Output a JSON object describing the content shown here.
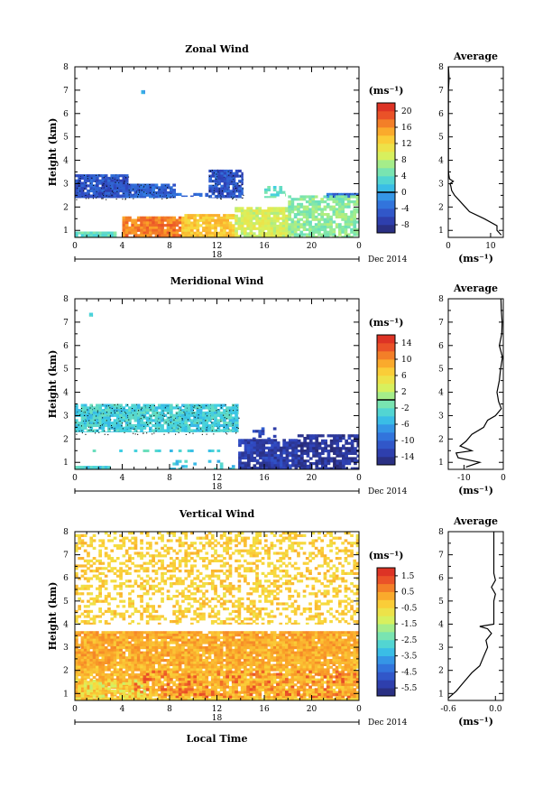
{
  "figure": {
    "xlabel": "Local Time",
    "ylabel": "Height (km)",
    "units": "(ms⁻¹)",
    "date_label": "Dec 2014",
    "day_label": "18",
    "avg_title": "Average",
    "x_ticks": [
      "0",
      "4",
      "8",
      "12",
      "16",
      "20",
      "0"
    ],
    "y_ticks": [
      "1",
      "2",
      "3",
      "4",
      "5",
      "6",
      "7",
      "8"
    ]
  },
  "chart_data": [
    {
      "type": "heatmap",
      "title": "Zonal Wind",
      "xlabel": "",
      "ylabel": "Height (km)",
      "xlim": [
        0,
        24
      ],
      "ylim": [
        0.7,
        8
      ],
      "colorbar": {
        "ticks": [
          "20",
          "16",
          "12",
          "8",
          "4",
          "0",
          "-4",
          "-8"
        ],
        "range": [
          -10,
          22
        ],
        "zero_line": 0
      },
      "profile": {
        "title": "Average",
        "xlim": [
          0,
          13
        ],
        "x_ticks": [
          "0",
          "10"
        ],
        "x_tick_values": [
          0,
          10
        ],
        "heights": [
          0.8,
          1.0,
          1.2,
          1.5,
          1.8,
          2.0,
          2.2,
          2.5,
          2.7,
          2.9,
          3.0,
          3.1,
          3.2,
          3.4,
          3.6,
          4.0,
          5.0,
          6.0,
          6.3,
          7.0,
          7.5,
          8.0
        ],
        "values": [
          12.5,
          11.5,
          11.5,
          8.5,
          5.0,
          4.0,
          3.0,
          1.5,
          0.8,
          0.6,
          0.4,
          1.2,
          0.3,
          0.1,
          0.05,
          0.05,
          0.05,
          0.05,
          0.05,
          0.05,
          0.2,
          0.05
        ]
      },
      "regions": [
        {
          "t": [
            0,
            4.5
          ],
          "h": [
            2.4,
            3.4
          ],
          "value": -5,
          "density": 0.95,
          "dotted": true
        },
        {
          "t": [
            4.5,
            8.5
          ],
          "h": [
            2.4,
            3.0
          ],
          "value": -4,
          "density": 0.85,
          "dotted": true
        },
        {
          "t": [
            8.5,
            11.3
          ],
          "h": [
            2.45,
            2.6
          ],
          "value": -4,
          "density": 0.5,
          "dotted": false
        },
        {
          "t": [
            11.3,
            14.2
          ],
          "h": [
            2.4,
            3.6
          ],
          "value": -5,
          "density": 0.85,
          "dotted": true
        },
        {
          "t": [
            16.0,
            17.8
          ],
          "h": [
            2.4,
            2.9
          ],
          "value": 4,
          "density": 0.4,
          "dotted": false
        },
        {
          "t": [
            21.0,
            24.0
          ],
          "h": [
            2.4,
            2.6
          ],
          "value": -3,
          "density": 0.9,
          "dotted": true
        },
        {
          "t": [
            0,
            3.5
          ],
          "h": [
            0.7,
            0.95
          ],
          "value": 4,
          "density": 0.95,
          "dotted": false
        },
        {
          "t": [
            4.0,
            9.0
          ],
          "h": [
            0.7,
            1.6
          ],
          "value": 17,
          "density": 0.88,
          "dotted": false
        },
        {
          "t": [
            9.0,
            13.5
          ],
          "h": [
            0.7,
            1.7
          ],
          "value": 13,
          "density": 0.85,
          "dotted": false
        },
        {
          "t": [
            13.5,
            18.0
          ],
          "h": [
            0.7,
            2.0
          ],
          "value": 9,
          "density": 0.9,
          "dotted": false
        },
        {
          "t": [
            18.0,
            24.0
          ],
          "h": [
            0.7,
            2.5
          ],
          "value": 6,
          "density": 0.78,
          "dotted": false
        },
        {
          "t": [
            5.6,
            5.9
          ],
          "h": [
            6.85,
            7.0
          ],
          "value": 0,
          "density": 1.0,
          "dotted": false
        }
      ]
    },
    {
      "type": "heatmap",
      "title": "Meridional Wind",
      "xlabel": "",
      "ylabel": "Height (km)",
      "xlim": [
        0,
        24
      ],
      "ylim": [
        0.7,
        8
      ],
      "colorbar": {
        "ticks": [
          "14",
          "10",
          "6",
          "2",
          "-2",
          "-6",
          "-10",
          "-14"
        ],
        "range": [
          -16,
          16
        ],
        "zero_line": 0
      },
      "profile": {
        "title": "Average",
        "xlim": [
          -14,
          0
        ],
        "x_ticks": [
          "-10",
          "0"
        ],
        "x_tick_values": [
          -10,
          0
        ],
        "heights": [
          0.8,
          1.0,
          1.2,
          1.4,
          1.5,
          1.7,
          1.9,
          2.2,
          2.5,
          2.8,
          3.0,
          3.3,
          3.6,
          4.0,
          4.5,
          5.0,
          5.5,
          6.0,
          6.5,
          7.0,
          7.5,
          8.0
        ],
        "values": [
          -9.5,
          -6,
          -11.5,
          -12,
          -8,
          -11,
          -9.5,
          -8,
          -5,
          -4,
          -2,
          -0.5,
          -1.2,
          -1.6,
          -1,
          -0.7,
          -0.2,
          -1.0,
          -0.4,
          -0.3,
          -0.5,
          -0.6
        ]
      },
      "regions": [
        {
          "t": [
            0,
            13.8
          ],
          "h": [
            2.3,
            3.5
          ],
          "value": -3.5,
          "density": 0.88,
          "dotted": true
        },
        {
          "t": [
            0,
            3.0
          ],
          "h": [
            0.7,
            0.85
          ],
          "value": -3.5,
          "density": 0.9,
          "dotted": false
        },
        {
          "t": [
            1.0,
            13.5
          ],
          "h": [
            1.45,
            1.55
          ],
          "value": -3.5,
          "density": 0.25,
          "dotted": false
        },
        {
          "t": [
            8.0,
            13.5
          ],
          "h": [
            0.7,
            1.1
          ],
          "value": -4,
          "density": 0.25,
          "dotted": false
        },
        {
          "t": [
            13.8,
            18.8
          ],
          "h": [
            0.7,
            2.0
          ],
          "value": -13,
          "density": 0.85,
          "dotted": false
        },
        {
          "t": [
            18.8,
            24.0
          ],
          "h": [
            0.7,
            2.2
          ],
          "value": -14,
          "density": 0.75,
          "dotted": false
        },
        {
          "t": [
            15.0,
            17.0
          ],
          "h": [
            2.0,
            2.5
          ],
          "value": -12,
          "density": 0.4,
          "dotted": false
        },
        {
          "t": [
            1.2,
            1.5
          ],
          "h": [
            7.25,
            7.4
          ],
          "value": -3.5,
          "density": 1.0,
          "dotted": false
        }
      ]
    },
    {
      "type": "heatmap",
      "title": "Vertical Wind",
      "xlabel": "Local Time",
      "ylabel": "Height (km)",
      "xlim": [
        0,
        24
      ],
      "ylim": [
        0.7,
        8
      ],
      "colorbar": {
        "ticks": [
          "1.5",
          "0.5",
          "-0.5",
          "-1.5",
          "-2.5",
          "-3.5",
          "-4.5",
          "-5.5"
        ],
        "range": [
          -6,
          2
        ],
        "zero_line": null
      },
      "profile": {
        "title": "Average",
        "xlim": [
          -0.6,
          0.1
        ],
        "x_ticks": [
          "-0.6",
          "0.0"
        ],
        "x_tick_values": [
          -0.6,
          0.0
        ],
        "heights": [
          0.8,
          1.1,
          1.5,
          1.9,
          2.2,
          2.6,
          3.0,
          3.3,
          3.6,
          3.8,
          3.9,
          4.0,
          4.6,
          5.0,
          5.3,
          5.6,
          5.9,
          6.2,
          7.0,
          8.0
        ],
        "values": [
          -0.6,
          -0.5,
          -0.4,
          -0.3,
          -0.2,
          -0.15,
          -0.1,
          -0.12,
          -0.05,
          -0.1,
          -0.2,
          -0.02,
          -0.02,
          -0.02,
          0.0,
          -0.05,
          0.0,
          -0.02,
          -0.02,
          -0.02
        ]
      },
      "regions": [
        {
          "t": [
            0,
            24
          ],
          "h": [
            2.2,
            3.7
          ],
          "value": 0.2,
          "density": 0.92,
          "dotted": false
        },
        {
          "t": [
            0,
            24
          ],
          "h": [
            0.7,
            2.2
          ],
          "value": 0.05,
          "density": 0.88,
          "dotted": false
        },
        {
          "t": [
            0,
            6
          ],
          "h": [
            0.7,
            1.6
          ],
          "value": -1.0,
          "density": 0.45,
          "dotted": false
        },
        {
          "t": [
            5,
            24
          ],
          "h": [
            0.8,
            2.0
          ],
          "value": 0.9,
          "density": 0.22,
          "dotted": false
        },
        {
          "t": [
            0,
            24
          ],
          "h": [
            4.0,
            8.0
          ],
          "value": -0.3,
          "density": 0.38,
          "dotted": false
        },
        {
          "t": [
            0,
            24
          ],
          "h": [
            0.7,
            0.8
          ],
          "value": -0.3,
          "density": 0.95,
          "dotted": false
        }
      ]
    }
  ]
}
